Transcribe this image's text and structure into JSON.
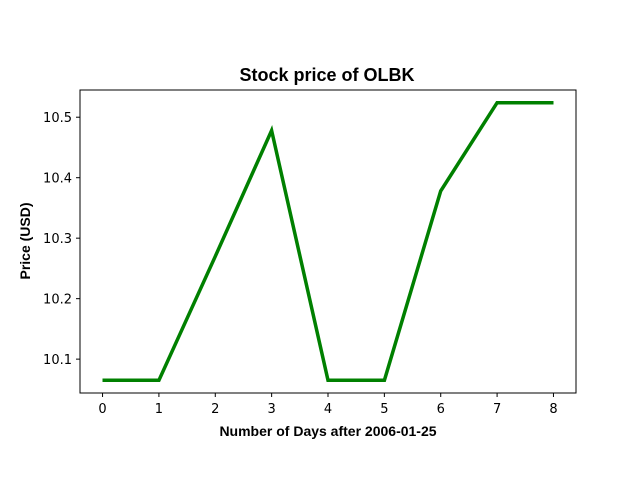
{
  "chart_data": {
    "type": "line",
    "title": "Stock price of OLBK",
    "xlabel": "Number of Days after 2006-01-25",
    "ylabel": "Price (USD)",
    "x": [
      0,
      1,
      2,
      3,
      4,
      5,
      6,
      7,
      8
    ],
    "series": [
      {
        "values": [
          10.065,
          10.065,
          10.27,
          10.478,
          10.065,
          10.065,
          10.378,
          10.524,
          10.524
        ],
        "color": "#008000"
      }
    ],
    "xlim": [
      -0.4,
      8.4
    ],
    "ylim": [
      10.044,
      10.545
    ],
    "xticks": [
      "0",
      "1",
      "2",
      "3",
      "4",
      "5",
      "6",
      "7",
      "8"
    ],
    "yticks": [
      "10.1",
      "10.2",
      "10.3",
      "10.4",
      "10.5"
    ],
    "grid": false
  }
}
